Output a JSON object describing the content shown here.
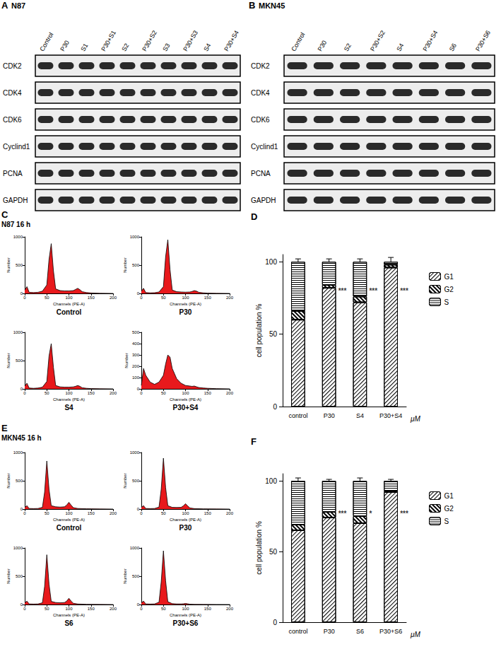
{
  "chart_data": [
    {
      "type": "blot",
      "panel": "A",
      "title": "N87",
      "lanes": [
        "Control",
        "P30",
        "S1",
        "P30+S1",
        "S2",
        "P30+S2",
        "S3",
        "P30+S3",
        "S4",
        "P30+S4"
      ],
      "rows": [
        "CDK2",
        "CDK4",
        "CDK6",
        "Cyclind1",
        "PCNA",
        "GAPDH"
      ]
    },
    {
      "type": "blot",
      "panel": "B",
      "title": "MKN45",
      "lanes": [
        "Control",
        "P30",
        "S2",
        "P30+S2",
        "S4",
        "P30+S4",
        "S6",
        "P30+S6"
      ],
      "rows": [
        "CDK2",
        "CDK4",
        "CDK6",
        "Cyclind1",
        "PCNA",
        "GAPDH"
      ]
    },
    {
      "type": "histograms",
      "panel": "C",
      "title": "N87 16 h",
      "xlabel": "Channels (PE-A)",
      "ylabel": "Number",
      "color": "#e8191c",
      "grid": false,
      "x": [
        0,
        5,
        10,
        20,
        30,
        40,
        50,
        55,
        60,
        65,
        70,
        80,
        90,
        100,
        110,
        115,
        120,
        125,
        130,
        140,
        150,
        170,
        200
      ],
      "xlim": [
        0,
        200
      ],
      "xticks": [
        0,
        50,
        100,
        150,
        200
      ],
      "charts": [
        {
          "title": "Control",
          "ylim": [
            0,
            1000
          ],
          "yticks": [
            0,
            500,
            1000
          ],
          "values": [
            60,
            120,
            20,
            15,
            20,
            40,
            150,
            600,
            880,
            400,
            80,
            50,
            45,
            45,
            50,
            70,
            90,
            65,
            30,
            15,
            8,
            3,
            0
          ]
        },
        {
          "title": "P30",
          "ylim": [
            0,
            1000
          ],
          "yticks": [
            0,
            500,
            1000
          ],
          "values": [
            40,
            90,
            15,
            10,
            12,
            25,
            120,
            650,
            950,
            420,
            60,
            30,
            25,
            22,
            25,
            35,
            50,
            40,
            20,
            10,
            5,
            2,
            0
          ]
        },
        {
          "title": "S4",
          "ylim": [
            0,
            1000
          ],
          "yticks": [
            0,
            500,
            1000
          ],
          "values": [
            50,
            100,
            15,
            10,
            15,
            30,
            130,
            580,
            800,
            380,
            60,
            35,
            30,
            30,
            35,
            45,
            60,
            45,
            20,
            10,
            5,
            2,
            0
          ]
        },
        {
          "title": "P30+S4",
          "ylim": [
            0,
            500
          ],
          "yticks": [
            0,
            100,
            200,
            300,
            400,
            500
          ],
          "values": [
            30,
            180,
            120,
            60,
            40,
            60,
            120,
            220,
            300,
            280,
            180,
            90,
            50,
            30,
            25,
            22,
            25,
            18,
            12,
            8,
            5,
            2,
            0
          ]
        }
      ]
    },
    {
      "type": "bar",
      "panel": "D",
      "stacked": true,
      "grid": false,
      "legend": "right",
      "categories": [
        "control",
        "P30",
        "S4",
        "P30+S4"
      ],
      "xlabel": "μM",
      "ylabel": "cell population %",
      "ylim": [
        0,
        105
      ],
      "yticks": [
        0,
        50,
        100
      ],
      "series": [
        {
          "name": "G1",
          "color": "#ffffff",
          "values": [
            60,
            82,
            72,
            96
          ]
        },
        {
          "name": "G2",
          "color": "#ffffff",
          "values": [
            6,
            2,
            4,
            2
          ]
        },
        {
          "name": "S",
          "color": "#ffffff",
          "values": [
            34,
            16,
            24,
            2
          ],
          "errors": [
            2,
            2,
            2,
            3
          ]
        }
      ],
      "annotations": [
        {
          "category": "P30",
          "y": 80,
          "text": "***"
        },
        {
          "category": "S4",
          "y": 80,
          "text": "***"
        },
        {
          "category": "P30+S4",
          "y": 80,
          "text": "***"
        }
      ]
    },
    {
      "type": "histograms",
      "panel": "E",
      "title": "MKN45 16 h",
      "xlabel": "Channels (PE-A)",
      "ylabel": "Number",
      "color": "#e8191c",
      "grid": false,
      "x": [
        0,
        5,
        10,
        20,
        30,
        40,
        45,
        50,
        55,
        60,
        70,
        80,
        90,
        95,
        100,
        105,
        110,
        120,
        140,
        170,
        200
      ],
      "xlim": [
        0,
        200
      ],
      "xticks": [
        0,
        50,
        100,
        150,
        200
      ],
      "charts": [
        {
          "title": "Control",
          "ylim": [
            0,
            1000
          ],
          "yticks": [
            0,
            500,
            1000
          ],
          "values": [
            30,
            60,
            10,
            8,
            10,
            30,
            300,
            850,
            350,
            60,
            40,
            35,
            40,
            70,
            120,
            70,
            25,
            10,
            5,
            2,
            0
          ]
        },
        {
          "title": "P30",
          "ylim": [
            0,
            1000
          ],
          "yticks": [
            0,
            500,
            1000
          ],
          "values": [
            30,
            60,
            10,
            8,
            10,
            35,
            350,
            900,
            380,
            60,
            30,
            28,
            30,
            55,
            95,
            55,
            20,
            8,
            4,
            2,
            0
          ]
        },
        {
          "title": "S6",
          "ylim": [
            0,
            1000
          ],
          "yticks": [
            0,
            500,
            1000
          ],
          "values": [
            30,
            60,
            10,
            8,
            10,
            30,
            320,
            880,
            360,
            55,
            35,
            30,
            35,
            60,
            110,
            60,
            22,
            9,
            4,
            2,
            0
          ]
        },
        {
          "title": "P30+S6",
          "ylim": [
            0,
            1000
          ],
          "yticks": [
            0,
            500,
            1000
          ],
          "values": [
            30,
            60,
            10,
            8,
            10,
            40,
            400,
            950,
            420,
            50,
            15,
            10,
            10,
            12,
            18,
            12,
            6,
            3,
            2,
            1,
            0
          ]
        }
      ]
    },
    {
      "type": "bar",
      "panel": "F",
      "stacked": true,
      "grid": false,
      "legend": "right",
      "categories": [
        "control",
        "P30",
        "S6",
        "P30+S6"
      ],
      "xlabel": "μM",
      "ylabel": "cell population %",
      "ylim": [
        0,
        105
      ],
      "yticks": [
        0,
        50,
        100
      ],
      "series": [
        {
          "name": "G1",
          "color": "#ffffff",
          "values": [
            65,
            74,
            70,
            92
          ]
        },
        {
          "name": "G2",
          "color": "#ffffff",
          "values": [
            4,
            4,
            5,
            1
          ]
        },
        {
          "name": "S",
          "color": "#ffffff",
          "values": [
            31,
            22,
            25,
            7
          ],
          "errors": [
            2,
            1,
            2,
            1
          ]
        }
      ],
      "annotations": [
        {
          "category": "P30",
          "y": 77,
          "text": "***"
        },
        {
          "category": "S6",
          "y": 77,
          "text": "*"
        },
        {
          "category": "P30+S6",
          "y": 77,
          "text": "***"
        }
      ]
    }
  ]
}
